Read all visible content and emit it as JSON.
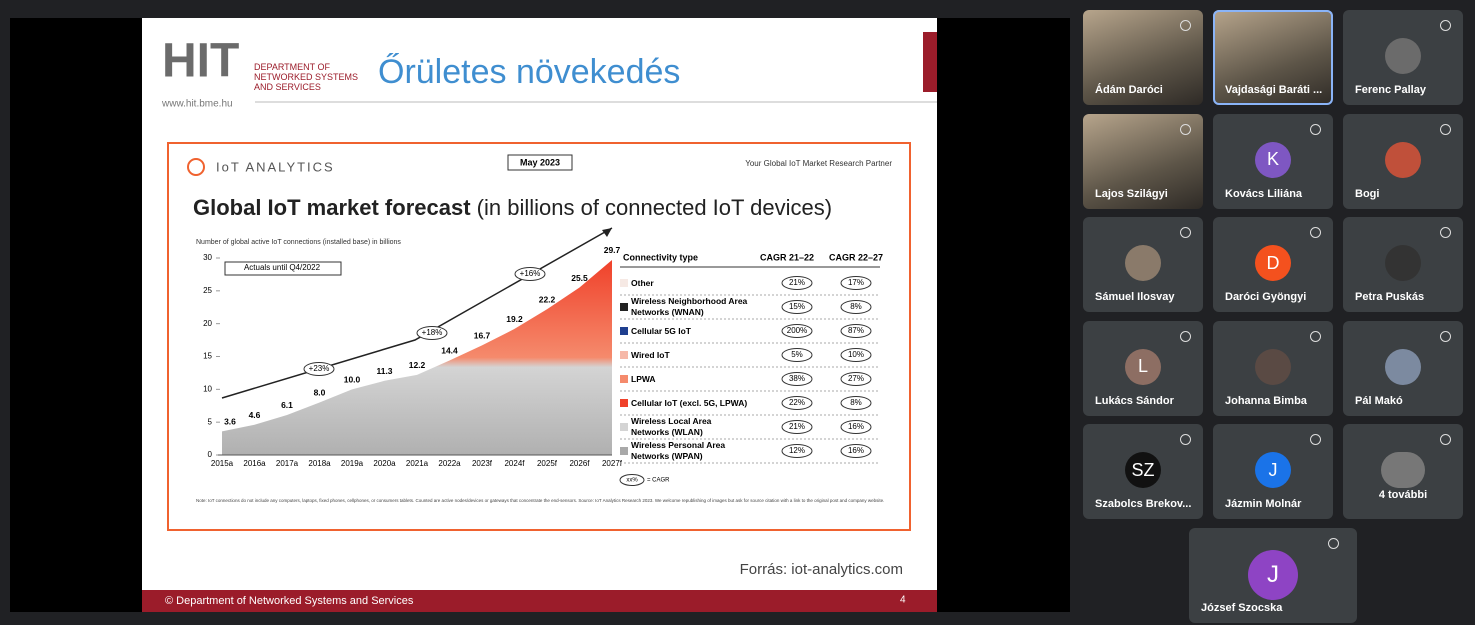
{
  "call": {
    "participants": [
      {
        "name": "Ádám Daróci",
        "kind": "video"
      },
      {
        "name": "Vajdasági Baráti ...",
        "kind": "video",
        "speaking": true
      },
      {
        "name": "Ferenc Pallay",
        "kind": "photo",
        "avatar_color": "#6b6b6b"
      },
      {
        "name": "Lajos Szilágyi",
        "kind": "video"
      },
      {
        "name": "Kovács Liliána",
        "kind": "initial",
        "initial": "K",
        "avatar_color": "#7e57c2"
      },
      {
        "name": "Bogi",
        "kind": "photo",
        "avatar_color": "#c0503a"
      },
      {
        "name": "Sámuel Ilosvay",
        "kind": "photo",
        "avatar_color": "#8a7a6a"
      },
      {
        "name": "Daróci Gyöngyi",
        "kind": "initial",
        "initial": "D",
        "avatar_color": "#f4511e"
      },
      {
        "name": "Petra Puskás",
        "kind": "photo",
        "avatar_color": "#333333"
      },
      {
        "name": "Lukács Sándor",
        "kind": "initial",
        "initial": "L",
        "avatar_color": "#8d6e63"
      },
      {
        "name": "Johanna Bimba",
        "kind": "photo",
        "avatar_color": "#5a4a44"
      },
      {
        "name": "Pál Makó",
        "kind": "photo",
        "avatar_color": "#7c8aa0"
      },
      {
        "name": "Szabolcs Brekov...",
        "kind": "initial",
        "initial": "SZ",
        "avatar_color": "#111111"
      },
      {
        "name": "Jázmin Molnár",
        "kind": "initial",
        "initial": "J",
        "avatar_color": "#1a73e8"
      },
      {
        "name": "4 további",
        "kind": "more",
        "avatar_color": "#777777"
      },
      {
        "name": "József Szocska",
        "kind": "initial",
        "initial": "J",
        "avatar_color": "#8e44c4"
      }
    ]
  },
  "slide": {
    "logo": "HIT",
    "logo_dept": "DEPARTMENT OF NETWORKED SYSTEMS AND SERVICES",
    "logo_url": "www.hit.bme.hu",
    "title": "Őrületes növekedés",
    "source": "Forrás: iot-analytics.com",
    "footer": "© Department of Networked Systems and Services",
    "page": "4",
    "chart": {
      "type": "area",
      "brand": "IoT ANALYTICS",
      "date": "May 2023",
      "tagline": "Your Global IoT Market Research Partner",
      "title": "Global IoT market forecast",
      "subtitle": "(in billions of connected IoT devices)",
      "y_label": "Number of global active IoT connections (installed base) in billions",
      "annotations": [
        "Actuals until Q4/2022",
        "+23%",
        "+18%",
        "+16%"
      ],
      "categories": [
        "2015a",
        "2016a",
        "2017a",
        "2018a",
        "2019a",
        "2020a",
        "2021a",
        "2022a",
        "2023f",
        "2024f",
        "2025f",
        "2026f",
        "2027f"
      ],
      "values": [
        3.6,
        4.6,
        6.1,
        8.0,
        10.0,
        11.3,
        12.2,
        14.4,
        16.7,
        19.2,
        22.2,
        25.5,
        29.7
      ],
      "value_labels": [
        "3.6",
        "4.6",
        "6.1",
        "8.0",
        "10.0",
        "11.3",
        "12.2",
        "14.4",
        "16.7",
        "19.2",
        "22.2",
        "25.5",
        "29.7"
      ],
      "ylim": [
        0,
        30
      ],
      "yticks": [
        0,
        5,
        10,
        15,
        20,
        25,
        30
      ],
      "legend": {
        "header": [
          "Connectivity type",
          "CAGR 21–22",
          "CAGR 22–27"
        ],
        "rows": [
          {
            "name": "Other",
            "color": "#f6e9e4",
            "cagr_21_22": "21%",
            "cagr_22_27": "17%"
          },
          {
            "name": "Wireless Neighborhood Area Networks (WNAN)",
            "color": "#222222",
            "cagr_21_22": "15%",
            "cagr_22_27": "8%"
          },
          {
            "name": "Cellular 5G IoT",
            "color": "#1f3f8f",
            "cagr_21_22": "200%",
            "cagr_22_27": "87%"
          },
          {
            "name": "Wired IoT",
            "color": "#f6b8a8",
            "cagr_21_22": "5%",
            "cagr_22_27": "10%"
          },
          {
            "name": "LPWA",
            "color": "#f58a6c",
            "cagr_21_22": "38%",
            "cagr_22_27": "27%"
          },
          {
            "name": "Cellular IoT (excl. 5G, LPWA)",
            "color": "#f0412a",
            "cagr_21_22": "22%",
            "cagr_22_27": "8%"
          },
          {
            "name": "Wireless Local Area Networks (WLAN)",
            "color": "#d4d4d4",
            "cagr_21_22": "21%",
            "cagr_22_27": "16%"
          },
          {
            "name": "Wireless Personal Area Networks (WPAN)",
            "color": "#a9a9a9",
            "cagr_21_22": "12%",
            "cagr_22_27": "16%"
          }
        ]
      },
      "key": [
        "xx%",
        "= CAGR"
      ],
      "note": "Note: IoT connections do not include any computers, laptops, fixed phones, cellphones, or consumers tablets. Counted are active nodes/devices or gateways that concentrate the end-sensors. Source: IoT Analytics Research 2023. We welcome republishing of images but ask for source citation with a link to the original post and company website."
    }
  }
}
